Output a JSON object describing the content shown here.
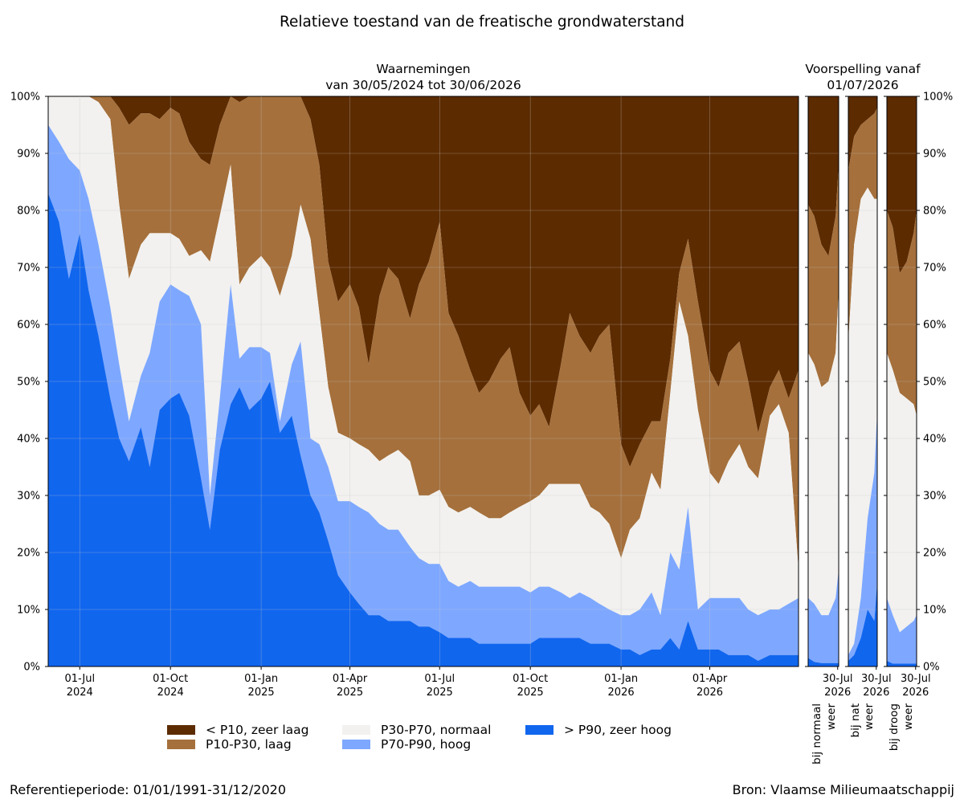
{
  "title": "Relatieve toestand van de freatische grondwaterstand",
  "observations_title": [
    "Waarnemingen",
    "van 30/05/2024 tot 30/06/2026"
  ],
  "forecast_title": [
    "Voorspelling vanaf",
    "01/07/2026"
  ],
  "reference_period": "Referentieperiode: 01/01/1991-31/12/2020",
  "source": "Bron: Vlaamse Milieumaatschappij",
  "colors": {
    "zeer_laag": "#5c2b00",
    "laag": "#a5703c",
    "normaal": "#f2f1ef",
    "hoog": "#7ea8ff",
    "zeer_hoog": "#1166ee"
  },
  "legend": [
    {
      "key": "zeer_laag",
      "label": "< P10, zeer laag"
    },
    {
      "key": "laag",
      "label": "P10-P30, laag"
    },
    {
      "key": "normaal",
      "label": "P30-P70, normaal"
    },
    {
      "key": "hoog",
      "label": "P70-P90, hoog"
    },
    {
      "key": "zeer_hoog",
      "label": "> P90, zeer hoog"
    }
  ],
  "chart_data": {
    "type": "area",
    "stacked": true,
    "y_unit": "%",
    "ylim": [
      0,
      100
    ],
    "y_ticks": [
      0,
      10,
      20,
      30,
      40,
      50,
      60,
      70,
      80,
      90,
      100
    ],
    "y_tick_labels": [
      "0%",
      "10%",
      "20%",
      "30%",
      "40%",
      "50%",
      "60%",
      "70%",
      "80%",
      "90%",
      "100%"
    ],
    "grid": true,
    "legend_position": "bottom",
    "series_order_bottom_to_top": [
      "zeer_hoog",
      "hoog",
      "normaal",
      "laag",
      "zeer_laag"
    ],
    "series_note": "values are cumulative upper boundaries (%) per class, from bottom to top",
    "observations": {
      "xlim": [
        "2024-05-30",
        "2026-06-30"
      ],
      "x_ticks": [
        {
          "date": "2024-07-01",
          "label": [
            "01-Jul",
            "2024"
          ]
        },
        {
          "date": "2024-10-01",
          "label": [
            "01-Oct",
            "2024"
          ]
        },
        {
          "date": "2025-01-01",
          "label": [
            "01-Jan",
            "2025"
          ]
        },
        {
          "date": "2025-04-01",
          "label": [
            "01-Apr",
            "2025"
          ]
        },
        {
          "date": "2025-07-01",
          "label": [
            "01-Jul",
            "2025"
          ]
        },
        {
          "date": "2025-10-01",
          "label": [
            "01-Oct",
            "2025"
          ]
        },
        {
          "date": "2026-01-01",
          "label": [
            "01-Jan",
            "2026"
          ]
        },
        {
          "date": "2026-04-01",
          "label": [
            "01-Apr",
            "2026"
          ]
        }
      ],
      "dates": [
        "2024-05-30",
        "2024-06-10",
        "2024-06-20",
        "2024-07-01",
        "2024-07-10",
        "2024-07-20",
        "2024-08-01",
        "2024-08-10",
        "2024-08-20",
        "2024-09-01",
        "2024-09-10",
        "2024-09-20",
        "2024-10-01",
        "2024-10-10",
        "2024-10-20",
        "2024-11-01",
        "2024-11-10",
        "2024-11-20",
        "2024-12-01",
        "2024-12-10",
        "2024-12-20",
        "2025-01-01",
        "2025-01-10",
        "2025-01-20",
        "2025-02-01",
        "2025-02-10",
        "2025-02-20",
        "2025-03-01",
        "2025-03-10",
        "2025-03-20",
        "2025-04-01",
        "2025-04-10",
        "2025-04-20",
        "2025-05-01",
        "2025-05-10",
        "2025-05-20",
        "2025-06-01",
        "2025-06-10",
        "2025-06-20",
        "2025-07-01",
        "2025-07-10",
        "2025-07-20",
        "2025-08-01",
        "2025-08-10",
        "2025-08-20",
        "2025-09-01",
        "2025-09-10",
        "2025-09-20",
        "2025-10-01",
        "2025-10-10",
        "2025-10-20",
        "2025-11-01",
        "2025-11-10",
        "2025-11-20",
        "2025-12-01",
        "2025-12-10",
        "2025-12-20",
        "2026-01-01",
        "2026-01-10",
        "2026-01-20",
        "2026-02-01",
        "2026-02-10",
        "2026-02-20",
        "2026-03-01",
        "2026-03-10",
        "2026-03-20",
        "2026-04-01",
        "2026-04-10",
        "2026-04-20",
        "2026-05-01",
        "2026-05-10",
        "2026-05-20",
        "2026-06-01",
        "2026-06-10",
        "2026-06-20",
        "2026-06-30"
      ],
      "zeer_hoog": [
        83,
        78,
        68,
        76,
        66,
        58,
        47,
        40,
        36,
        42,
        35,
        45,
        47,
        48,
        44,
        33,
        24,
        38,
        46,
        49,
        45,
        47,
        50,
        41,
        44,
        37,
        30,
        27,
        22,
        16,
        13,
        11,
        9,
        9,
        8,
        8,
        8,
        7,
        7,
        6,
        5,
        5,
        5,
        4,
        4,
        4,
        4,
        4,
        4,
        5,
        5,
        5,
        5,
        5,
        4,
        4,
        4,
        3,
        3,
        2,
        3,
        3,
        5,
        3,
        8,
        3,
        3,
        3,
        2,
        2,
        2,
        1,
        2,
        2,
        2,
        2
      ],
      "hoog": [
        95,
        92,
        89,
        87,
        82,
        74,
        63,
        53,
        43,
        51,
        55,
        64,
        67,
        66,
        65,
        60,
        30,
        47,
        67,
        54,
        56,
        56,
        55,
        43,
        53,
        57,
        40,
        39,
        35,
        29,
        29,
        28,
        27,
        25,
        24,
        24,
        21,
        19,
        18,
        18,
        15,
        14,
        15,
        14,
        14,
        14,
        14,
        14,
        13,
        14,
        14,
        13,
        12,
        13,
        12,
        11,
        10,
        9,
        9,
        10,
        13,
        9,
        20,
        17,
        28,
        10,
        12,
        12,
        12,
        12,
        10,
        9,
        10,
        10,
        11,
        12
      ],
      "normaal": [
        100,
        100,
        100,
        100,
        100,
        99,
        96,
        81,
        68,
        74,
        76,
        76,
        76,
        75,
        72,
        73,
        71,
        79,
        88,
        67,
        70,
        72,
        70,
        65,
        72,
        81,
        75,
        62,
        49,
        41,
        40,
        39,
        38,
        36,
        37,
        38,
        36,
        30,
        30,
        31,
        28,
        27,
        28,
        27,
        26,
        26,
        27,
        28,
        29,
        30,
        32,
        32,
        32,
        32,
        28,
        27,
        25,
        19,
        24,
        26,
        34,
        31,
        48,
        64,
        58,
        45,
        34,
        32,
        36,
        39,
        35,
        33,
        44,
        46,
        41,
        17
      ],
      "laag": [
        100,
        100,
        100,
        100,
        100,
        100,
        100,
        98,
        95,
        97,
        97,
        96,
        98,
        97,
        92,
        89,
        88,
        95,
        100,
        99,
        100,
        100,
        100,
        100,
        100,
        100,
        96,
        88,
        71,
        64,
        67,
        63,
        53,
        65,
        70,
        68,
        61,
        67,
        71,
        78,
        62,
        58,
        52,
        48,
        50,
        54,
        56,
        48,
        44,
        46,
        42,
        53,
        62,
        58,
        55,
        58,
        60,
        39,
        35,
        39,
        43,
        43,
        54,
        69,
        75,
        64,
        52,
        49,
        55,
        57,
        50,
        41,
        49,
        52,
        47,
        52
      ],
      "zeer_laag": [
        100,
        100,
        100,
        100,
        100,
        100,
        100,
        100,
        100,
        100,
        100,
        100,
        100,
        100,
        100,
        100,
        100,
        100,
        100,
        100,
        100,
        100,
        100,
        100,
        100,
        100,
        100,
        100,
        100,
        100,
        100,
        100,
        100,
        100,
        100,
        100,
        100,
        100,
        100,
        100,
        100,
        100,
        100,
        100,
        100,
        100,
        100,
        100,
        100,
        100,
        100,
        100,
        100,
        100,
        100,
        100,
        100,
        100,
        100,
        100,
        100,
        100,
        100,
        100,
        100,
        100,
        100,
        100,
        100,
        100,
        100,
        100,
        100,
        100,
        100,
        100
      ]
    },
    "forecasts": [
      {
        "label": [
          "bij normaal",
          "weer"
        ],
        "xlim": [
          "2026-07-01",
          "2026-07-31"
        ],
        "x_tick": {
          "date": "2026-07-30",
          "label": [
            "30-Jul",
            "2026"
          ]
        },
        "dates": [
          "2026-07-01",
          "2026-07-07",
          "2026-07-14",
          "2026-07-21",
          "2026-07-28",
          "2026-07-31"
        ],
        "zeer_hoog": [
          1.5,
          0.8,
          0.6,
          0.6,
          0.6,
          0.6
        ],
        "hoog": [
          12,
          11,
          9,
          9,
          12,
          17
        ],
        "normaal": [
          55,
          53,
          49,
          50,
          55,
          66
        ],
        "laag": [
          81,
          79,
          74,
          72,
          79,
          88
        ],
        "zeer_laag": [
          100,
          100,
          100,
          100,
          100,
          100
        ]
      },
      {
        "label": [
          "bij nat",
          "weer"
        ],
        "xlim": [
          "2026-07-01",
          "2026-07-31"
        ],
        "x_tick": {
          "date": "2026-07-30",
          "label": [
            "30-Jul",
            "2026"
          ]
        },
        "dates": [
          "2026-07-01",
          "2026-07-07",
          "2026-07-14",
          "2026-07-21",
          "2026-07-28",
          "2026-07-31"
        ],
        "zeer_hoog": [
          1,
          2,
          5,
          10,
          8,
          15
        ],
        "hoog": [
          2,
          4,
          12,
          26,
          34,
          45
        ],
        "normaal": [
          57,
          74,
          82,
          84,
          82,
          82
        ],
        "laag": [
          87,
          93,
          95,
          96,
          97,
          98
        ],
        "zeer_laag": [
          100,
          100,
          100,
          100,
          100,
          100
        ]
      },
      {
        "label": [
          "bij droog",
          "weer"
        ],
        "xlim": [
          "2026-07-01",
          "2026-07-31"
        ],
        "x_tick": {
          "date": "2026-07-30",
          "label": [
            "30-Jul",
            "2026"
          ]
        },
        "dates": [
          "2026-07-01",
          "2026-07-07",
          "2026-07-14",
          "2026-07-21",
          "2026-07-28",
          "2026-07-31"
        ],
        "zeer_hoog": [
          1,
          0.5,
          0.5,
          0.5,
          0.5,
          0.5
        ],
        "hoog": [
          12,
          9,
          6,
          7,
          8,
          9
        ],
        "normaal": [
          55,
          52,
          48,
          47,
          46,
          44
        ],
        "laag": [
          80,
          77,
          69,
          71,
          76,
          80
        ],
        "zeer_laag": [
          100,
          100,
          100,
          100,
          100,
          100
        ]
      }
    ]
  }
}
